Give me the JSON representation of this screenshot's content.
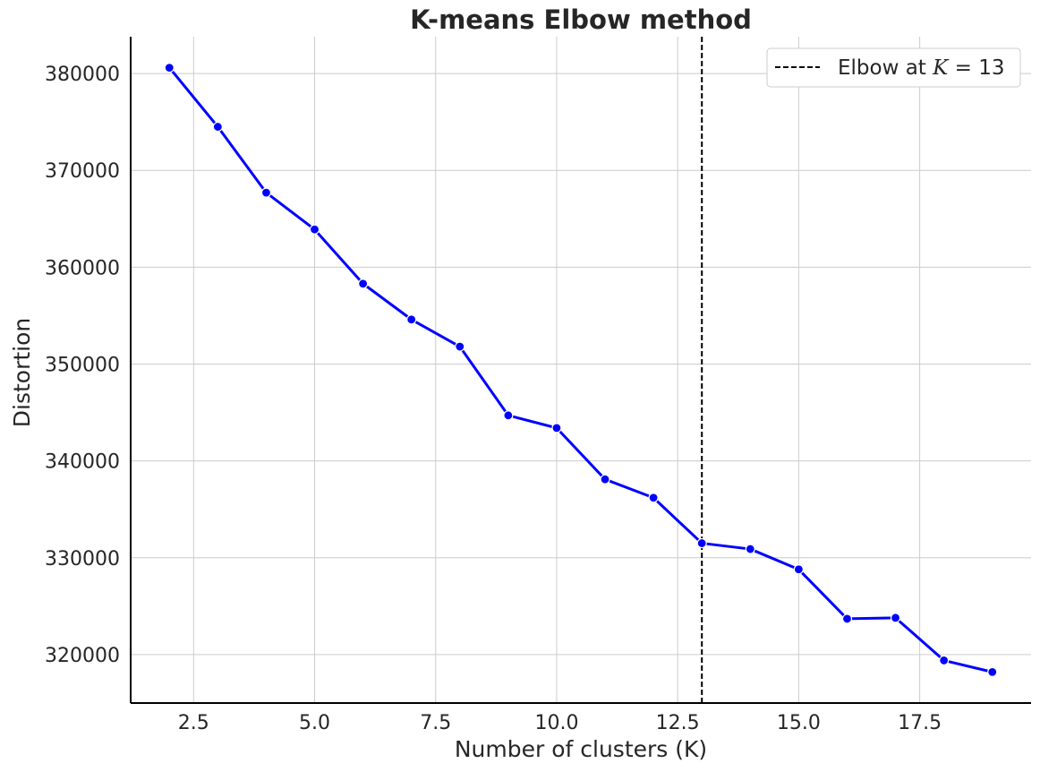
{
  "chart_data": {
    "type": "line",
    "title": "K-means Elbow method",
    "xlabel": "Number of clusters (K)",
    "ylabel": "Distortion",
    "xlim": [
      1.2,
      19.8
    ],
    "ylim": [
      315000,
      383800
    ],
    "x_ticks": [
      2.5,
      5.0,
      7.5,
      10.0,
      12.5,
      15.0,
      17.5
    ],
    "x_tick_labels": [
      "2.5",
      "5.0",
      "7.5",
      "10.0",
      "12.5",
      "15.0",
      "17.5"
    ],
    "y_ticks": [
      320000,
      330000,
      340000,
      350000,
      360000,
      370000,
      380000
    ],
    "y_tick_labels": [
      "320000",
      "330000",
      "340000",
      "350000",
      "360000",
      "370000",
      "380000"
    ],
    "grid": true,
    "legend_position": "top-right",
    "series": [
      {
        "color": "#0000ff",
        "x": [
          2,
          3,
          4,
          5,
          6,
          7,
          8,
          9,
          10,
          11,
          12,
          13,
          14,
          15,
          16,
          17,
          18,
          19
        ],
        "y": [
          380600,
          374500,
          367700,
          363900,
          358300,
          354600,
          351800,
          344700,
          343400,
          338100,
          336200,
          331500,
          330900,
          328800,
          323700,
          323800,
          319400,
          318200
        ]
      }
    ],
    "reference_lines": [
      {
        "orientation": "vertical",
        "x": 13,
        "color": "#000000",
        "style": "dashed",
        "label_prefix": "Elbow at ",
        "label_symbol": "K",
        "label_suffix": " = 13"
      }
    ]
  }
}
